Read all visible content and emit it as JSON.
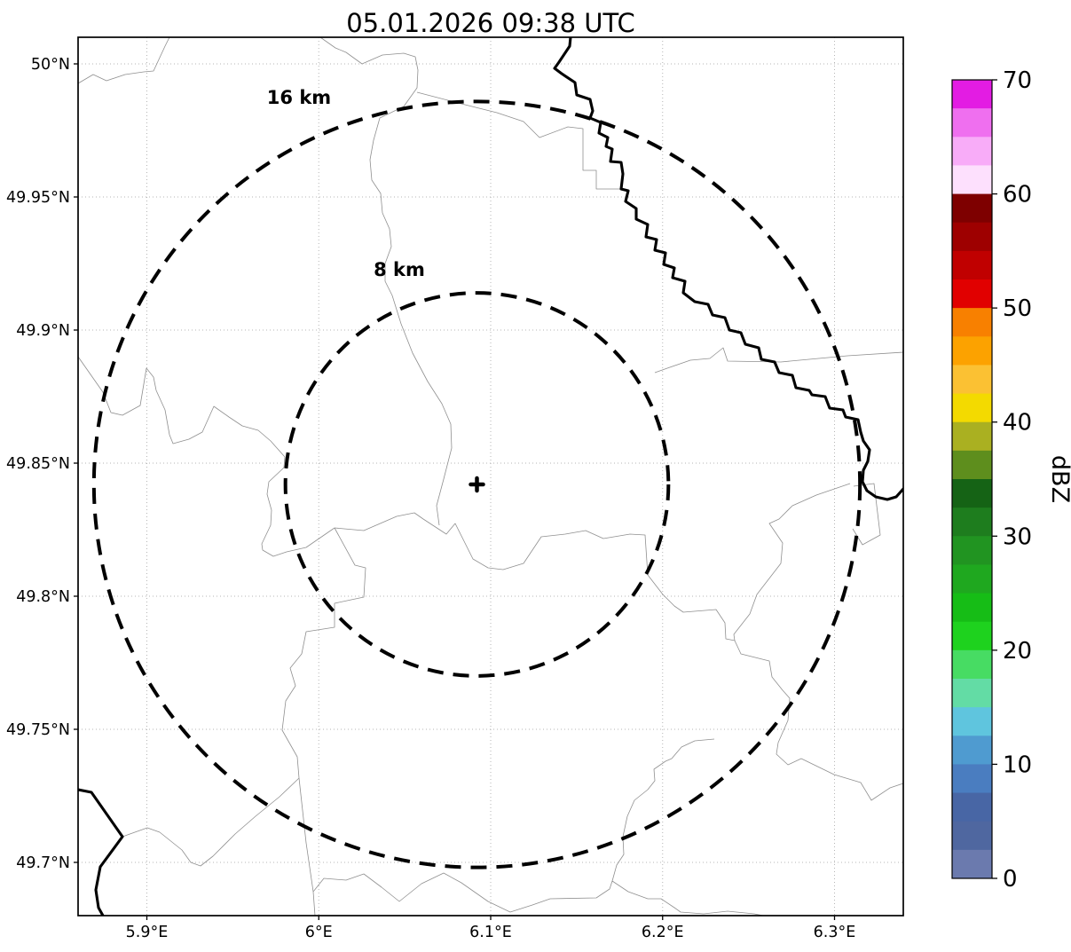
{
  "figure": {
    "title": "05.01.2026 09:38 UTC"
  },
  "chart_data": {
    "type": "heatmap",
    "title": "05.01.2026 09:38 UTC",
    "xlabel": "",
    "ylabel": "",
    "grid": true,
    "xlim": [
      5.86,
      6.34
    ],
    "ylim": [
      49.68,
      50.01
    ],
    "x_ticks": [
      {
        "value": 5.9,
        "label": "5.9°E"
      },
      {
        "value": 6.0,
        "label": "6°E"
      },
      {
        "value": 6.1,
        "label": "6.1°E"
      },
      {
        "value": 6.2,
        "label": "6.2°E"
      },
      {
        "value": 6.3,
        "label": "6.3°E"
      }
    ],
    "y_ticks": [
      {
        "value": 50.0,
        "label": "50°N"
      },
      {
        "value": 49.95,
        "label": "49.95°N"
      },
      {
        "value": 49.9,
        "label": "49.9°N"
      },
      {
        "value": 49.85,
        "label": "49.85°N"
      },
      {
        "value": 49.8,
        "label": "49.8°N"
      },
      {
        "value": 49.75,
        "label": "49.75°N"
      },
      {
        "value": 49.7,
        "label": "49.7°N"
      }
    ],
    "radar_center": {
      "lon": 6.092,
      "lat": 49.842,
      "marker": "+"
    },
    "range_rings": [
      {
        "radius_km": 8,
        "label": "8 km"
      },
      {
        "radius_km": 16,
        "label": "16 km"
      }
    ],
    "reflectivity_echoes": [],
    "colorbar": {
      "label": "dBZ",
      "min": 0,
      "max": 70,
      "step": 2.5,
      "tick_values": [
        0,
        10,
        20,
        30,
        40,
        50,
        60,
        70
      ],
      "tick_labels": [
        "0",
        "10",
        "20",
        "30",
        "40",
        "50",
        "60",
        "70"
      ],
      "colors_top_to_bottom": [
        "#e31ce3",
        "#ef6fef",
        "#f8acf8",
        "#fde0fd",
        "#7e0000",
        "#9e0000",
        "#c00000",
        "#e10000",
        "#f88000",
        "#fca200",
        "#fbc133",
        "#f3da00",
        "#aab021",
        "#5e8e1d",
        "#156315",
        "#1e7d1e",
        "#219421",
        "#1fa81f",
        "#16bd16",
        "#1ed21e",
        "#47dc63",
        "#63dca5",
        "#5fc5de",
        "#4f9bd0",
        "#4a7dc0",
        "#4866a5",
        "#4f67a0",
        "#6b7aae"
      ]
    }
  }
}
